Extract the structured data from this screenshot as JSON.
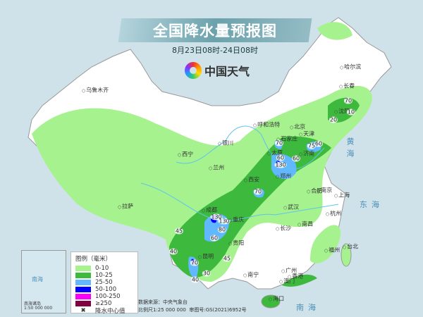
{
  "title": "全国降水量预报图",
  "subtitle": "8月23日08时-24日08时",
  "logo_text": "中国天气",
  "legend": {
    "title": "图例（毫米）",
    "items": [
      {
        "label": "0-10",
        "color": "#a6f28f"
      },
      {
        "label": "10-25",
        "color": "#3dba3d"
      },
      {
        "label": "25-50",
        "color": "#61b8ff"
      },
      {
        "label": "50-100",
        "color": "#0000fe"
      },
      {
        "label": "100-250",
        "color": "#fa00fa"
      },
      {
        "label": "≥250",
        "color": "#800040"
      }
    ],
    "center_label": "降水中心值"
  },
  "source": "数据来源：中央气象台",
  "scale": "比例尺1:25 000 000",
  "map_number": "审图号:GS(2021)6952号",
  "inset": {
    "title": "南海诸岛",
    "scale": "1:50 000 000",
    "sea": "南海"
  },
  "seas": [
    "黄海",
    "东海",
    "南海"
  ],
  "cities": [
    "乌鲁木齐",
    "哈尔滨",
    "长春",
    "沈阳",
    "呼和浩特",
    "北京",
    "天津",
    "银川",
    "石家庄",
    "太原",
    "济南",
    "西宁",
    "兰州",
    "西安",
    "郑州",
    "合肥",
    "南京",
    "上海",
    "武汉",
    "杭州",
    "拉萨",
    "成都",
    "重庆",
    "长沙",
    "南昌",
    "贵阳",
    "福州",
    "台北",
    "昆明",
    "南宁",
    "广州",
    "香港",
    "澳门",
    "海口"
  ],
  "rain_centers": [
    "70",
    "10",
    "20",
    "70",
    "60",
    "130",
    "60",
    "75",
    "60",
    "70",
    "130",
    "130",
    "80",
    "60",
    "45",
    "40",
    "70",
    "40",
    "30",
    "45"
  ]
}
